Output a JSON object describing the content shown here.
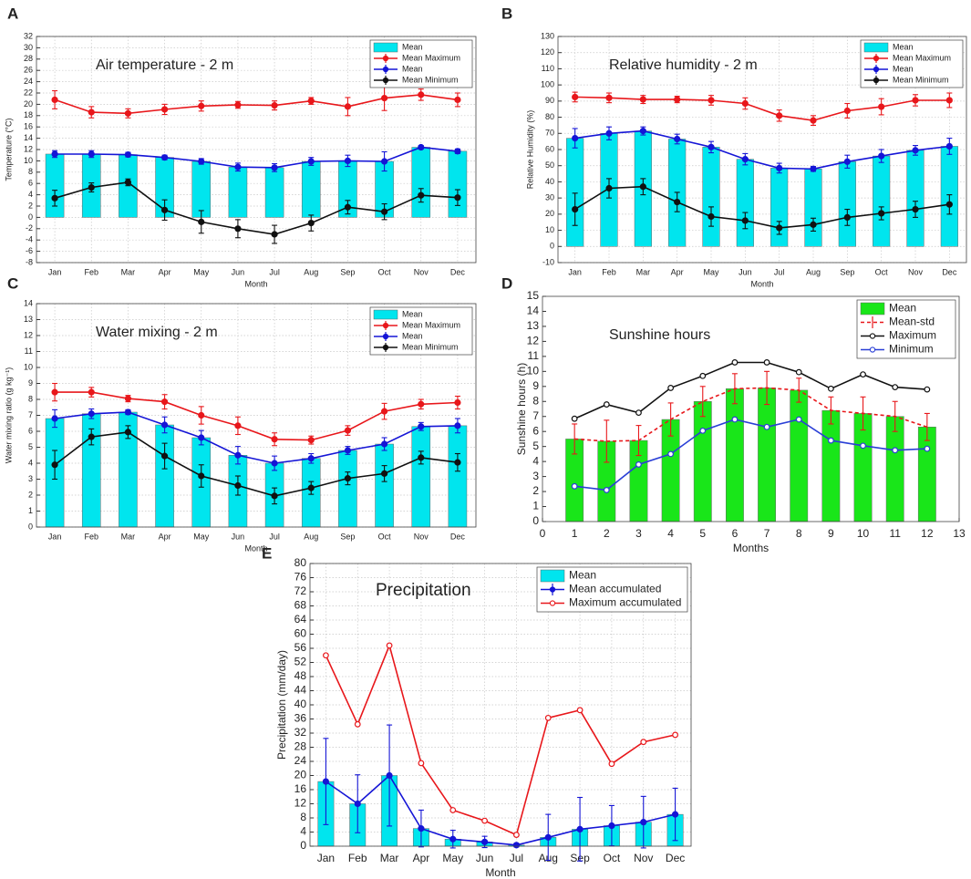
{
  "chart_data": [
    {
      "type": "combo",
      "panel": "A",
      "title": "Air temperature -  2 m",
      "xlabel": "Month",
      "ylabel": "Temperature (°C)",
      "categories": [
        "Jan",
        "Feb",
        "Mar",
        "Apr",
        "May",
        "Jun",
        "Jul",
        "Aug",
        "Sep",
        "Oct",
        "Nov",
        "Dec"
      ],
      "ylim": [
        -8,
        32
      ],
      "yticks": [
        -8,
        -6,
        -4,
        -2,
        0,
        2,
        4,
        6,
        8,
        10,
        12,
        14,
        16,
        18,
        20,
        22,
        24,
        26,
        28,
        30,
        32
      ],
      "grid": true,
      "legend": "top-right",
      "series": [
        {
          "name": "Mean",
          "kind": "bar",
          "color": "#00e5ee",
          "values": [
            11.2,
            11.2,
            11.1,
            10.6,
            9.9,
            8.9,
            8.8,
            9.9,
            10.0,
            9.9,
            12.4,
            11.7
          ]
        },
        {
          "name": "Mean Maximum",
          "kind": "line",
          "marker": "filled",
          "color": "#e8171b",
          "values": [
            20.8,
            18.6,
            18.4,
            19.1,
            19.7,
            19.9,
            19.8,
            20.6,
            19.6,
            21.1,
            21.7,
            20.8
          ],
          "errors": [
            1.6,
            1.0,
            0.8,
            0.9,
            0.9,
            0.6,
            0.8,
            0.6,
            1.6,
            2.2,
            1.0,
            1.2
          ]
        },
        {
          "name": "Mean",
          "kind": "line",
          "marker": "filled",
          "color": "#1515d6",
          "values": [
            11.2,
            11.2,
            11.1,
            10.6,
            9.9,
            8.9,
            8.8,
            9.9,
            10.0,
            9.9,
            12.4,
            11.7
          ],
          "errors": [
            0.6,
            0.6,
            0.4,
            0.4,
            0.5,
            0.7,
            0.7,
            0.7,
            1.0,
            1.7,
            0.3,
            0.4
          ]
        },
        {
          "name": "Mean Minimum",
          "kind": "line",
          "marker": "filled",
          "color": "#111111",
          "values": [
            3.4,
            5.3,
            6.2,
            1.3,
            -0.8,
            -2.0,
            -3.0,
            -1.0,
            1.8,
            1.0,
            3.9,
            3.5
          ],
          "errors": [
            1.4,
            0.8,
            0.6,
            1.8,
            2.0,
            1.6,
            1.6,
            1.4,
            1.2,
            1.4,
            1.2,
            1.4
          ]
        }
      ]
    },
    {
      "type": "combo",
      "panel": "B",
      "title": "Relative humidity  - 2 m",
      "xlabel": "Month",
      "ylabel": "Relative Humidity (%)",
      "categories": [
        "Jan",
        "Feb",
        "Mar",
        "Apr",
        "May",
        "Jun",
        "Jul",
        "Aug",
        "Sep",
        "Oct",
        "Nov",
        "Dec"
      ],
      "ylim": [
        -10,
        130
      ],
      "yticks": [
        -10,
        0,
        10,
        20,
        30,
        40,
        50,
        60,
        70,
        80,
        90,
        100,
        110,
        120,
        130
      ],
      "grid": true,
      "legend": "top-right",
      "series": [
        {
          "name": "Mean",
          "kind": "bar",
          "color": "#00e5ee",
          "values": [
            67,
            70,
            71.5,
            66.5,
            61.5,
            54,
            48.5,
            48,
            52.5,
            56,
            59.5,
            62
          ]
        },
        {
          "name": "Mean Maximum",
          "kind": "line",
          "marker": "filled",
          "color": "#e8171b",
          "values": [
            92.5,
            92,
            91,
            91,
            90.5,
            88.5,
            81,
            78,
            84,
            86.5,
            90.5,
            90.5
          ],
          "errors": [
            3,
            3,
            2.5,
            2,
            3,
            3.5,
            3.5,
            3,
            4.5,
            5,
            3.5,
            4.5
          ]
        },
        {
          "name": "Mean",
          "kind": "line",
          "marker": "filled",
          "color": "#1515d6",
          "values": [
            67,
            70,
            71.5,
            66.5,
            61.5,
            54,
            48.5,
            48,
            52.5,
            56,
            59.5,
            62
          ],
          "errors": [
            6,
            4,
            2.5,
            3,
            3.5,
            3.5,
            3,
            1.5,
            4,
            4,
            3,
            5
          ]
        },
        {
          "name": "Mean Minimum",
          "kind": "line",
          "marker": "filled",
          "color": "#111111",
          "values": [
            23,
            36,
            37,
            27.5,
            18.5,
            16,
            11.5,
            13.5,
            18,
            20.5,
            23,
            26
          ],
          "errors": [
            10,
            6,
            5,
            6,
            6,
            5,
            4,
            4,
            5,
            4,
            5,
            6
          ]
        }
      ]
    },
    {
      "type": "combo",
      "panel": "C",
      "title": "Water mixing -  2 m",
      "xlabel": "Month",
      "ylabel": "Water mixing ratio (g kg⁻¹)",
      "categories": [
        "Jan",
        "Feb",
        "Mar",
        "Apr",
        "May",
        "Jun",
        "Jul",
        "Aug",
        "Sep",
        "Oct",
        "Nov",
        "Dec"
      ],
      "ylim": [
        0,
        14
      ],
      "yticks": [
        0,
        1,
        2,
        3,
        4,
        5,
        6,
        7,
        8,
        9,
        10,
        11,
        12,
        13,
        14
      ],
      "grid": true,
      "legend": "top-right",
      "series": [
        {
          "name": "Mean",
          "kind": "bar",
          "color": "#00e5ee",
          "values": [
            6.8,
            7.1,
            7.2,
            6.4,
            5.6,
            4.5,
            4.0,
            4.3,
            4.8,
            5.2,
            6.3,
            6.35
          ]
        },
        {
          "name": "Mean Maximum",
          "kind": "line",
          "marker": "filled",
          "color": "#e8171b",
          "values": [
            8.45,
            8.45,
            8.05,
            7.85,
            7.0,
            6.35,
            5.5,
            5.45,
            6.05,
            7.25,
            7.7,
            7.8
          ],
          "errors": [
            0.55,
            0.3,
            0.2,
            0.45,
            0.55,
            0.55,
            0.4,
            0.25,
            0.3,
            0.5,
            0.3,
            0.4
          ]
        },
        {
          "name": "Mean",
          "kind": "line",
          "marker": "filled",
          "color": "#1515d6",
          "values": [
            6.8,
            7.1,
            7.2,
            6.4,
            5.6,
            4.5,
            4.0,
            4.3,
            4.8,
            5.2,
            6.3,
            6.35
          ],
          "errors": [
            0.55,
            0.3,
            0.15,
            0.5,
            0.45,
            0.55,
            0.45,
            0.3,
            0.25,
            0.4,
            0.25,
            0.45
          ]
        },
        {
          "name": "Mean Minimum",
          "kind": "line",
          "marker": "filled",
          "color": "#111111",
          "values": [
            3.9,
            5.65,
            5.95,
            4.45,
            3.2,
            2.6,
            1.95,
            2.45,
            3.05,
            3.35,
            4.35,
            4.05
          ],
          "errors": [
            0.9,
            0.5,
            0.4,
            0.8,
            0.7,
            0.6,
            0.5,
            0.4,
            0.4,
            0.5,
            0.4,
            0.55
          ]
        }
      ]
    },
    {
      "type": "combo",
      "panel": "D",
      "title": "Sunshine hours",
      "xlabel": "Months",
      "ylabel": "Sunshine hours (h)",
      "x": [
        1,
        2,
        3,
        4,
        5,
        6,
        7,
        8,
        9,
        10,
        11,
        12
      ],
      "xlim": [
        0,
        13
      ],
      "xticks": [
        0,
        1,
        2,
        3,
        4,
        5,
        6,
        7,
        8,
        9,
        10,
        11,
        12,
        13
      ],
      "ylim": [
        0,
        15
      ],
      "yticks": [
        0,
        1,
        2,
        3,
        4,
        5,
        6,
        7,
        8,
        9,
        10,
        11,
        12,
        13,
        14,
        15
      ],
      "grid": false,
      "legend": "top-right",
      "series": [
        {
          "name": "Mean",
          "kind": "bar",
          "color": "#19e619",
          "values": [
            5.5,
            5.35,
            5.4,
            6.8,
            8.0,
            8.85,
            8.9,
            8.75,
            7.4,
            7.2,
            7.0,
            6.3
          ]
        },
        {
          "name": "Mean-std",
          "kind": "line",
          "marker": "none",
          "dashed": true,
          "color": "#e8171b",
          "values": [
            5.5,
            5.35,
            5.4,
            6.8,
            8.0,
            8.85,
            8.9,
            8.75,
            7.4,
            7.2,
            7.0,
            6.3
          ],
          "errors": [
            1.0,
            1.4,
            1.0,
            1.1,
            1.0,
            1.0,
            1.1,
            0.8,
            0.9,
            1.1,
            1.0,
            0.9
          ]
        },
        {
          "name": "Maximum",
          "kind": "line",
          "marker": "open",
          "color": "#111111",
          "values": [
            6.85,
            7.8,
            7.25,
            8.9,
            9.7,
            10.6,
            10.6,
            9.95,
            8.85,
            9.8,
            8.95,
            8.8
          ]
        },
        {
          "name": "Minimum",
          "kind": "line",
          "marker": "open",
          "color": "#2a3fd6",
          "values": [
            2.35,
            2.1,
            3.8,
            4.5,
            6.05,
            6.8,
            6.3,
            6.8,
            5.4,
            5.05,
            4.75,
            4.85
          ]
        }
      ]
    },
    {
      "type": "combo",
      "panel": "E",
      "title": "Precipitation",
      "xlabel": "Month",
      "ylabel": "Precipitation (mm/day)",
      "categories": [
        "Jan",
        "Feb",
        "Mar",
        "Apr",
        "May",
        "Jun",
        "Jul",
        "Aug",
        "Sep",
        "Oct",
        "Nov",
        "Dec"
      ],
      "ylim": [
        0,
        80
      ],
      "yticks": [
        0,
        4,
        8,
        12,
        16,
        20,
        24,
        28,
        32,
        36,
        40,
        44,
        48,
        52,
        56,
        60,
        64,
        68,
        72,
        76,
        80
      ],
      "grid": true,
      "legend": "top-right",
      "series": [
        {
          "name": "Mean",
          "kind": "bar",
          "color": "#00e5ee",
          "values": [
            18.3,
            12,
            20,
            5,
            2,
            1.2,
            0.3,
            2.5,
            4.8,
            5.8,
            6.8,
            9
          ]
        },
        {
          "name": "Mean accumulated",
          "kind": "line",
          "marker": "filled",
          "color": "#1515d6",
          "values": [
            18.3,
            12,
            20,
            5,
            2,
            1.2,
            0.3,
            2.5,
            4.8,
            5.8,
            6.8,
            9
          ],
          "errors": [
            12.2,
            8.2,
            14.3,
            5.2,
            2.5,
            1.6,
            0.5,
            6.5,
            9,
            5.7,
            7.3,
            7.4
          ]
        },
        {
          "name": "Maximum accumulated",
          "kind": "line",
          "marker": "open",
          "color": "#e8171b",
          "values": [
            54,
            34.5,
            56.8,
            23.5,
            10.2,
            7.2,
            3.2,
            36.3,
            38.5,
            23.3,
            29.5,
            31.5
          ]
        }
      ]
    }
  ]
}
